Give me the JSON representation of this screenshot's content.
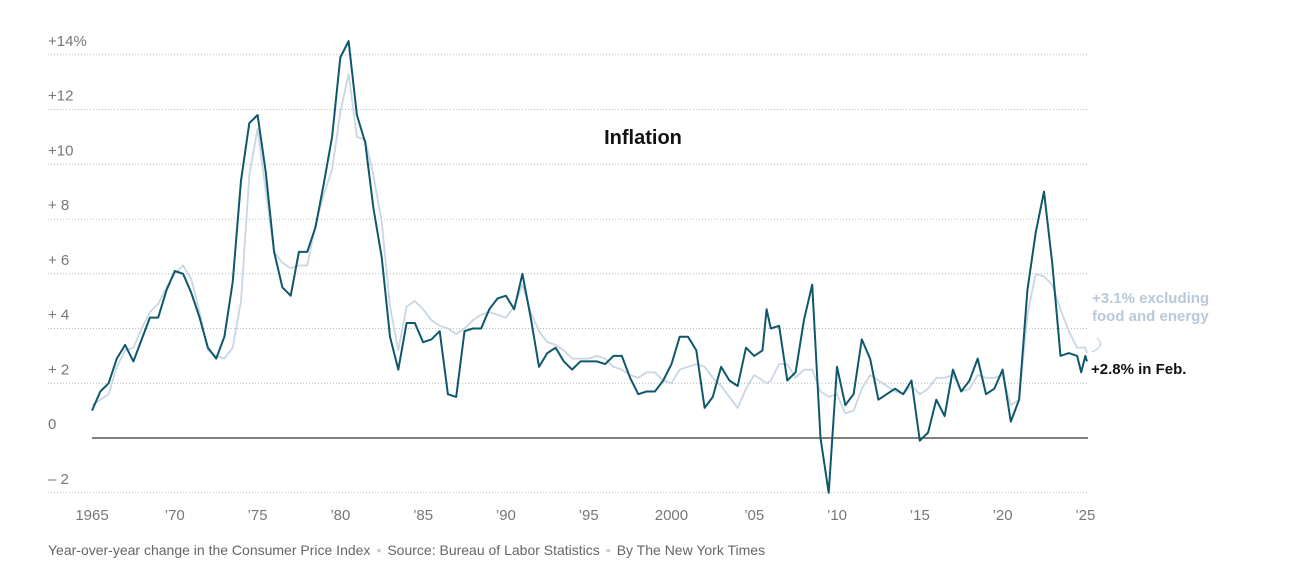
{
  "chart_data": {
    "type": "line",
    "title": "Inflation",
    "x": [
      1965,
      1965.5,
      1966,
      1966.5,
      1967,
      1967.5,
      1968,
      1968.5,
      1969,
      1969.5,
      1970,
      1970.5,
      1971,
      1971.5,
      1972,
      1972.5,
      1973,
      1973.5,
      1974,
      1974.5,
      1975,
      1975.5,
      1976,
      1976.5,
      1977,
      1977.5,
      1978,
      1978.5,
      1979,
      1979.5,
      1980,
      1980.5,
      1981,
      1981.5,
      1982,
      1982.5,
      1983,
      1983.5,
      1984,
      1984.5,
      1985,
      1985.5,
      1986,
      1986.5,
      1987,
      1987.5,
      1988,
      1988.5,
      1989,
      1989.5,
      1990,
      1990.5,
      1991,
      1991.5,
      1992,
      1992.5,
      1993,
      1993.5,
      1994,
      1994.5,
      1995,
      1995.5,
      1996,
      1996.5,
      1997,
      1997.5,
      1998,
      1998.5,
      1999,
      1999.5,
      2000,
      2000.5,
      2001,
      2001.5,
      2002,
      2002.5,
      2003,
      2003.5,
      2004,
      2004.5,
      2005,
      2005.5,
      2005.75,
      2006,
      2006.5,
      2007,
      2007.5,
      2008,
      2008.5,
      2009,
      2009.5,
      2010,
      2010.5,
      2011,
      2011.5,
      2012,
      2012.5,
      2013,
      2013.5,
      2014,
      2014.5,
      2015,
      2015.5,
      2016,
      2016.5,
      2017,
      2017.5,
      2018,
      2018.5,
      2019,
      2019.5,
      2020,
      2020.5,
      2021,
      2021.5,
      2022,
      2022.5,
      2023,
      2023.5,
      2024,
      2024.5,
      2024.75,
      2025,
      2025.1
    ],
    "series": [
      {
        "name": "+3.1% excluding food and energy",
        "color": "#c9d6e4",
        "values": [
          1.2,
          1.4,
          1.6,
          2.6,
          3.2,
          3.3,
          4.0,
          4.6,
          4.9,
          5.5,
          6.0,
          6.3,
          5.8,
          4.6,
          3.2,
          3.0,
          2.9,
          3.3,
          5.0,
          9.6,
          11.3,
          9.0,
          6.8,
          6.4,
          6.2,
          6.3,
          6.3,
          7.8,
          8.9,
          9.8,
          11.9,
          13.3,
          11.0,
          10.9,
          9.6,
          7.9,
          4.8,
          3.2,
          4.8,
          5.0,
          4.7,
          4.3,
          4.1,
          4.0,
          3.8,
          4.0,
          4.3,
          4.5,
          4.6,
          4.5,
          4.4,
          4.8,
          5.6,
          4.6,
          3.9,
          3.5,
          3.4,
          3.2,
          2.9,
          2.9,
          2.9,
          3.0,
          2.9,
          2.6,
          2.5,
          2.3,
          2.2,
          2.4,
          2.4,
          2.1,
          2.0,
          2.5,
          2.6,
          2.7,
          2.6,
          2.2,
          1.9,
          1.5,
          1.1,
          1.8,
          2.3,
          2.1,
          2.0,
          2.1,
          2.7,
          2.7,
          2.2,
          2.5,
          2.5,
          1.7,
          1.5,
          1.6,
          0.9,
          1.0,
          1.8,
          2.3,
          2.1,
          1.9,
          1.7,
          1.6,
          1.9,
          1.6,
          1.8,
          2.2,
          2.2,
          2.3,
          1.7,
          1.8,
          2.3,
          2.2,
          2.2,
          2.3,
          1.2,
          1.4,
          4.5,
          6.0,
          5.9,
          5.6,
          4.7,
          3.9,
          3.3,
          3.3,
          3.3,
          3.1
        ]
      },
      {
        "name": "+2.8% in Feb.",
        "color": "#0e586c",
        "values": [
          1.0,
          1.7,
          2.0,
          2.9,
          3.4,
          2.8,
          3.6,
          4.4,
          4.4,
          5.4,
          6.1,
          6.0,
          5.3,
          4.4,
          3.3,
          2.9,
          3.7,
          5.7,
          9.4,
          11.5,
          11.8,
          9.7,
          6.8,
          5.5,
          5.2,
          6.8,
          6.8,
          7.7,
          9.3,
          11.0,
          13.9,
          14.5,
          11.8,
          10.8,
          8.4,
          6.6,
          3.7,
          2.5,
          4.2,
          4.2,
          3.5,
          3.6,
          3.9,
          1.6,
          1.5,
          3.9,
          4.0,
          4.0,
          4.7,
          5.1,
          5.2,
          4.7,
          6.0,
          4.4,
          2.6,
          3.1,
          3.3,
          2.8,
          2.5,
          2.8,
          2.8,
          2.8,
          2.7,
          3.0,
          3.0,
          2.2,
          1.6,
          1.7,
          1.7,
          2.1,
          2.7,
          3.7,
          3.7,
          3.2,
          1.1,
          1.5,
          2.6,
          2.1,
          1.9,
          3.3,
          3.0,
          3.2,
          4.7,
          4.0,
          4.1,
          2.1,
          2.4,
          4.3,
          5.6,
          0.0,
          -2.0,
          2.6,
          1.2,
          1.6,
          3.6,
          2.9,
          1.4,
          1.6,
          1.8,
          1.6,
          2.1,
          -0.1,
          0.2,
          1.4,
          0.8,
          2.5,
          1.7,
          2.1,
          2.9,
          1.6,
          1.8,
          2.5,
          0.6,
          1.4,
          5.4,
          7.5,
          9.0,
          6.4,
          3.0,
          3.1,
          3.0,
          2.4,
          3.0,
          2.8
        ]
      }
    ],
    "xlim": [
      1965,
      2025.1
    ],
    "xticks": [
      {
        "value": 1965,
        "label": "1965"
      },
      {
        "value": 1970,
        "label": "’70"
      },
      {
        "value": 1975,
        "label": "’75"
      },
      {
        "value": 1980,
        "label": "’80"
      },
      {
        "value": 1985,
        "label": "’85"
      },
      {
        "value": 1990,
        "label": "’90"
      },
      {
        "value": 1995,
        "label": "’95"
      },
      {
        "value": 2000,
        "label": "2000"
      },
      {
        "value": 2005,
        "label": "’05"
      },
      {
        "value": 2010,
        "label": "’10"
      },
      {
        "value": 2015,
        "label": "’15"
      },
      {
        "value": 2020,
        "label": "’20"
      },
      {
        "value": 2025,
        "label": "’25"
      }
    ],
    "ylim": [
      -2.2,
      14.9
    ],
    "yticks": [
      {
        "value": -2,
        "label": "– 2"
      },
      0,
      {
        "value": 2,
        "label": "+ 2"
      },
      {
        "value": 4,
        "label": "+ 4"
      },
      {
        "value": 6,
        "label": "+ 6"
      },
      {
        "value": 8,
        "label": "+ 8"
      },
      {
        "value": 10,
        "label": "+10"
      },
      {
        "value": 12,
        "label": "+12"
      },
      {
        "value": 14,
        "label": "+14%"
      }
    ],
    "grid": true,
    "annotations": {
      "core_label": [
        "+3.1% excluding",
        "food and energy"
      ],
      "headline_label": "+2.8% in Feb."
    },
    "footer": [
      "Year-over-year change in the Consumer Price Index",
      "Source: Bureau of Labor Statistics",
      "By The New York Times"
    ]
  }
}
